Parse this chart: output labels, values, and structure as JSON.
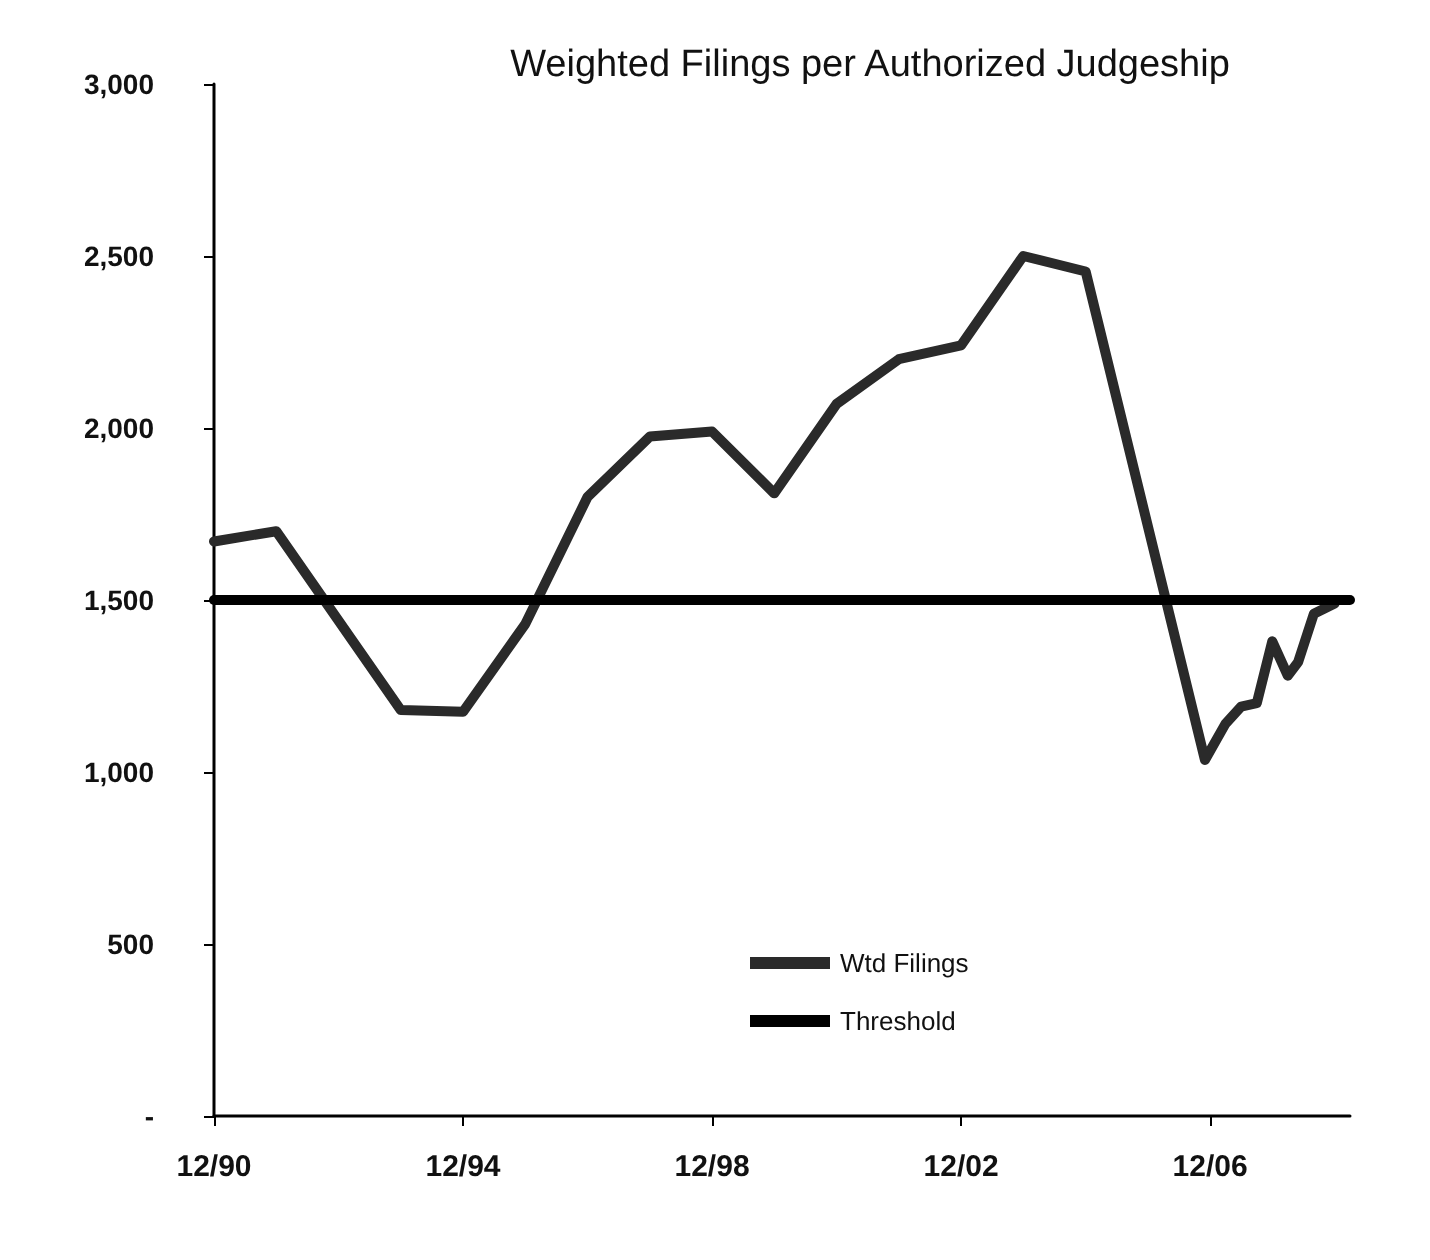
{
  "chart_data": {
    "type": "line",
    "title": "Weighted Filings per Authorized Judgeship",
    "xlim": [
      "1990-12",
      "2009-03"
    ],
    "xticks": [
      {
        "value": "1990-12",
        "label": "12/90"
      },
      {
        "value": "1994-12",
        "label": "12/94"
      },
      {
        "value": "1998-12",
        "label": "12/98"
      },
      {
        "value": "2002-12",
        "label": "12/02"
      },
      {
        "value": "2006-12",
        "label": "12/06"
      }
    ],
    "ylim": [
      0,
      3000
    ],
    "yticks": [
      {
        "value": 0,
        "label": "-"
      },
      {
        "value": 500,
        "label": "500"
      },
      {
        "value": 1000,
        "label": "1,000"
      },
      {
        "value": 1500,
        "label": "1,500"
      },
      {
        "value": 2000,
        "label": "2,000"
      },
      {
        "value": 2500,
        "label": "2,500"
      },
      {
        "value": 3000,
        "label": "3,000"
      }
    ],
    "series": [
      {
        "name": "Wtd Filings",
        "color": "#2a2a2a",
        "x": [
          "1990-12",
          "1991-12",
          "1993-12",
          "1994-12",
          "1995-12",
          "1996-12",
          "1997-12",
          "1998-12",
          "1999-12",
          "2000-12",
          "2001-12",
          "2002-12",
          "2003-12",
          "2004-12",
          "2006-11",
          "2007-03",
          "2007-06",
          "2007-09",
          "2007-12",
          "2008-03",
          "2008-05",
          "2008-08",
          "2008-12"
        ],
        "values": [
          1670,
          1700,
          1180,
          1175,
          1430,
          1800,
          1975,
          1990,
          1810,
          2070,
          2200,
          2240,
          2500,
          2455,
          1035,
          1140,
          1190,
          1200,
          1380,
          1280,
          1320,
          1460,
          1490
        ]
      },
      {
        "name": "Threshold",
        "color": "#000000",
        "x": [
          "1990-12",
          "2009-03"
        ],
        "values": [
          1500,
          1500
        ]
      }
    ],
    "grid": false,
    "legend": "bottom",
    "marker": "none",
    "line_style": "solid"
  }
}
